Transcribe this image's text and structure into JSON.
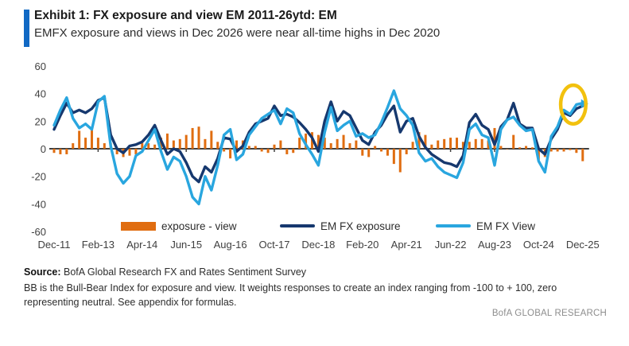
{
  "header": {
    "exhibit_title": "Exhibit 1: FX exposure and view EM 2011-26ytd: EM",
    "subtitle": "EMFX exposure and views in Dec 2026 were near all-time highs in Dec 2020",
    "accent_color": "#1169C4"
  },
  "footer": {
    "source_label": "Source:",
    "source_text": " BofA Global Research FX and Rates Sentiment Survey",
    "note": "BB is the Bull-Bear Index for exposure and view. It weights responses to create an index ranging from -100 to + 100, zero representing neutral. See appendix for formulas.",
    "brand": "BofA GLOBAL RESEARCH"
  },
  "chart_data": {
    "type": "line+bar",
    "x_start_label": "Dec-11",
    "x_tick_labels": [
      "Dec-11",
      "Feb-13",
      "Apr-14",
      "Jun-15",
      "Aug-16",
      "Oct-17",
      "Dec-18",
      "Feb-20",
      "Apr-21",
      "Jun-22",
      "Aug-23",
      "Oct-24",
      "Dec-25"
    ],
    "x_tick_interval_months": 14,
    "month_step_per_point": 2,
    "y_ticks": [
      60,
      40,
      20,
      0,
      "-20",
      "-40",
      "-60"
    ],
    "y_tick_values": [
      60,
      40,
      20,
      0,
      -20,
      -40,
      -60
    ],
    "ylim": [
      -60,
      60
    ],
    "grid": "off",
    "legend_position": "bottom-inside",
    "axis_color": "#3f3f3f",
    "tick_label_color": "#404040",
    "series": [
      {
        "name": "exposure - view",
        "type": "bar",
        "color": "#E06D10",
        "values": [
          -3,
          -4,
          -4,
          4,
          13,
          8,
          15,
          8,
          4,
          4,
          -4,
          -6,
          -5,
          -4,
          4,
          4,
          3,
          8,
          11,
          6,
          7,
          10,
          15,
          16,
          7,
          13,
          5,
          -2,
          -7,
          6,
          6,
          2,
          2,
          -2,
          -3,
          3,
          6,
          -4,
          -3,
          8,
          11,
          12,
          10,
          8,
          4,
          7,
          10,
          4,
          6,
          -5,
          -6,
          2,
          -2,
          -5,
          -11,
          -17,
          -4,
          5,
          12,
          10,
          3,
          6,
          7,
          8,
          8,
          5,
          5,
          7,
          7,
          6,
          15,
          2,
          0,
          10,
          1,
          2,
          1,
          -8,
          -6,
          -2,
          -2,
          -2,
          -1,
          -3,
          -9
        ]
      },
      {
        "name": "EM FX exposure",
        "type": "line",
        "color": "#16386E",
        "values": [
          14,
          24,
          33,
          26,
          28,
          26,
          29,
          35,
          37,
          10,
          0,
          -3,
          2,
          3,
          5,
          10,
          17,
          6,
          -4,
          0,
          -2,
          -10,
          -20,
          -24,
          -13,
          -17,
          -7,
          8,
          7,
          -2,
          2,
          12,
          18,
          20,
          22,
          31,
          24,
          25,
          23,
          19,
          14,
          8,
          -2,
          20,
          34,
          20,
          27,
          24,
          15,
          6,
          3,
          12,
          17,
          25,
          31,
          12,
          20,
          22,
          9,
          1,
          -4,
          -7,
          -10,
          -11,
          -13,
          -5,
          19,
          25,
          17,
          14,
          3,
          16,
          21,
          33,
          18,
          15,
          15,
          0,
          -4,
          7,
          14,
          26,
          24,
          29,
          31
        ]
      },
      {
        "name": "EM FX View",
        "type": "line",
        "color": "#29A6DF",
        "values": [
          17,
          28,
          37,
          22,
          15,
          18,
          14,
          34,
          38,
          2,
          -18,
          -25,
          -20,
          -5,
          -2,
          6,
          14,
          -2,
          -15,
          -6,
          -9,
          -20,
          -35,
          -40,
          -20,
          -30,
          -12,
          10,
          14,
          -8,
          -4,
          10,
          16,
          22,
          25,
          28,
          18,
          29,
          26,
          11,
          3,
          -4,
          -12,
          12,
          30,
          13,
          17,
          20,
          9,
          11,
          8,
          10,
          19,
          30,
          42,
          29,
          24,
          17,
          -3,
          -9,
          -7,
          -13,
          -17,
          -19,
          -21,
          -10,
          14,
          18,
          10,
          8,
          -12,
          14,
          21,
          23,
          17,
          13,
          14,
          -9,
          -17,
          9,
          16,
          28,
          25,
          32,
          33
        ]
      }
    ],
    "annotation": {
      "shape": "ellipse",
      "meaning": "highlight of latest (Dec-25) readings",
      "color": "#F2C10E",
      "center_month": 165,
      "center_value": 32,
      "rx_months": 4,
      "ry_values": 14
    }
  }
}
